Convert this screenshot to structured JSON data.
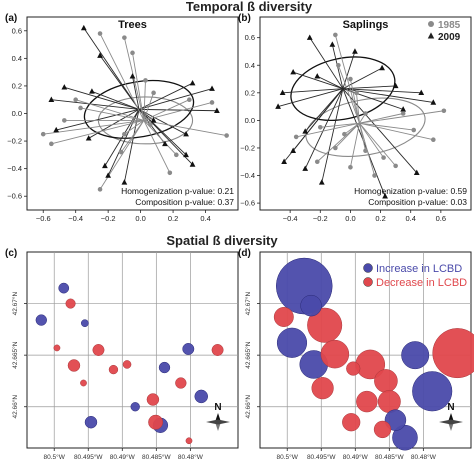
{
  "titles": {
    "temporal": "Temporal ß diversity",
    "spatial": "Spatial ß diversity"
  },
  "colors": {
    "red": "#e0474c",
    "blue": "#4a4aaa",
    "gray": "#8a8a8a",
    "dark": "#222222",
    "grid": "#9a9a9a"
  },
  "chart_data": [
    {
      "id": "a",
      "label": "(a)",
      "title": "Trees",
      "type": "scatter",
      "xlim": [
        -0.7,
        0.6
      ],
      "ylim": [
        -0.7,
        0.7
      ],
      "xticks": [
        -0.6,
        -0.4,
        -0.2,
        0.0,
        0.2,
        0.4
      ],
      "yticks": [
        -0.6,
        -0.4,
        -0.2,
        0.0,
        0.2,
        0.4,
        0.6
      ],
      "xtick_labels": [
        "−0.6",
        "−0.4",
        "−0.2",
        "0.0",
        "0.2",
        "0.4"
      ],
      "ytick_labels": [
        "−0.6",
        "−0.4",
        "−0.2",
        "0.0",
        "0.2",
        "0.4",
        "0.6"
      ],
      "centroid_2009": [
        -0.01,
        0.03
      ],
      "centroid_1985": [
        0.02,
        -0.05
      ],
      "ellipse_2009": {
        "cx": -0.01,
        "cy": 0.03,
        "rx": 0.34,
        "ry": 0.2,
        "angle": 10
      },
      "ellipse_1985": {
        "cx": 0.03,
        "cy": -0.05,
        "rx": 0.29,
        "ry": 0.17,
        "angle": 0
      },
      "series": [
        {
          "name": "2009",
          "marker": "triangle",
          "points": [
            [
              -0.35,
              0.62
            ],
            [
              -0.25,
              0.42
            ],
            [
              -0.05,
              0.27
            ],
            [
              0.32,
              0.22
            ],
            [
              0.44,
              0.18
            ],
            [
              -0.3,
              0.16
            ],
            [
              -0.47,
              0.19
            ],
            [
              -0.55,
              0.1
            ],
            [
              0.47,
              0.02
            ],
            [
              0.08,
              -0.05
            ],
            [
              0.28,
              -0.15
            ],
            [
              -0.52,
              -0.12
            ],
            [
              -0.32,
              -0.18
            ],
            [
              0.15,
              -0.22
            ],
            [
              0.28,
              -0.3
            ],
            [
              -0.22,
              -0.38
            ],
            [
              -0.2,
              -0.45
            ],
            [
              0.32,
              -0.37
            ],
            [
              -0.1,
              -0.5
            ]
          ]
        },
        {
          "name": "1985",
          "marker": "circle",
          "points": [
            [
              -0.25,
              0.58
            ],
            [
              -0.1,
              0.55
            ],
            [
              -0.05,
              0.44
            ],
            [
              0.03,
              0.24
            ],
            [
              0.08,
              0.15
            ],
            [
              0.3,
              0.1
            ],
            [
              -0.37,
              0.04
            ],
            [
              0.44,
              0.08
            ],
            [
              -0.4,
              0.1
            ],
            [
              -0.47,
              -0.05
            ],
            [
              -0.6,
              -0.15
            ],
            [
              0.06,
              -0.08
            ],
            [
              -0.1,
              -0.15
            ],
            [
              -0.12,
              -0.28
            ],
            [
              0.22,
              -0.3
            ],
            [
              0.18,
              -0.43
            ],
            [
              -0.25,
              -0.55
            ],
            [
              0.53,
              -0.16
            ],
            [
              -0.55,
              -0.22
            ]
          ]
        }
      ],
      "stats": [
        "Homogenization p-value: 0.21",
        "Composition p-value: 0.37"
      ]
    },
    {
      "id": "b",
      "label": "(b)",
      "title": "Saplings",
      "type": "scatter",
      "xlim": [
        -0.6,
        0.8
      ],
      "ylim": [
        -0.65,
        0.75
      ],
      "xticks": [
        -0.4,
        -0.2,
        0.0,
        0.2,
        0.4,
        0.6
      ],
      "yticks": [
        -0.6,
        -0.4,
        -0.2,
        0.0,
        0.2,
        0.4,
        0.6
      ],
      "xtick_labels": [
        "−0.4",
        "−0.2",
        "0.0",
        "0.2",
        "0.4",
        "0.6"
      ],
      "ytick_labels": [
        "−0.6",
        "−0.4",
        "−0.2",
        "0.0",
        "0.2",
        "0.4",
        "0.6"
      ],
      "legend": [
        {
          "name": "1985",
          "marker": "circle",
          "color": "#8a8a8a"
        },
        {
          "name": "2009",
          "marker": "triangle",
          "color": "#222222"
        }
      ],
      "centroid_2009": [
        -0.05,
        0.23
      ],
      "centroid_1985": [
        0.06,
        -0.02
      ],
      "ellipse_2009": {
        "cx": -0.05,
        "cy": 0.23,
        "rx": 0.35,
        "ry": 0.22,
        "angle": 12
      },
      "ellipse_1985": {
        "cx": 0.1,
        "cy": -0.05,
        "rx": 0.4,
        "ry": 0.2,
        "angle": 10
      },
      "series": [
        {
          "name": "2009",
          "marker": "triangle",
          "points": [
            [
              -0.27,
              0.6
            ],
            [
              -0.12,
              0.55
            ],
            [
              0.03,
              0.5
            ],
            [
              0.21,
              0.38
            ],
            [
              -0.22,
              0.32
            ],
            [
              -0.38,
              0.35
            ],
            [
              -0.45,
              0.2
            ],
            [
              0.3,
              0.25
            ],
            [
              0.47,
              0.2
            ],
            [
              0.55,
              0.13
            ],
            [
              0.35,
              0.08
            ],
            [
              -0.48,
              0.1
            ],
            [
              -0.3,
              -0.08
            ],
            [
              -0.44,
              -0.3
            ],
            [
              -0.3,
              -0.35
            ],
            [
              -0.19,
              -0.45
            ],
            [
              0.23,
              -0.55
            ],
            [
              0.44,
              -0.38
            ],
            [
              -0.38,
              -0.22
            ]
          ]
        },
        {
          "name": "1985",
          "marker": "circle",
          "points": [
            [
              -0.1,
              0.62
            ],
            [
              -0.08,
              0.4
            ],
            [
              0.0,
              0.3
            ],
            [
              0.04,
              0.2
            ],
            [
              0.1,
              0.05
            ],
            [
              0.35,
              0.05
            ],
            [
              0.42,
              -0.07
            ],
            [
              0.62,
              0.07
            ],
            [
              -0.2,
              -0.05
            ],
            [
              -0.36,
              -0.12
            ],
            [
              -0.1,
              -0.2
            ],
            [
              0.1,
              -0.22
            ],
            [
              0.22,
              -0.27
            ],
            [
              -0.22,
              -0.3
            ],
            [
              0.55,
              -0.14
            ],
            [
              0.0,
              -0.34
            ],
            [
              0.3,
              -0.33
            ],
            [
              -0.04,
              -0.1
            ],
            [
              0.16,
              -0.4
            ]
          ]
        }
      ],
      "stats": [
        "Homogenization p-value: 0.59",
        "Composition p-value: 0.03"
      ]
    },
    {
      "id": "c",
      "label": "(c)",
      "type": "scatter",
      "xlim": [
        -80.504,
        -80.473
      ],
      "ylim": [
        42.656,
        42.675
      ],
      "xticks": [
        -80.5,
        -80.495,
        -80.49,
        -80.485,
        -80.48
      ],
      "xtick_labels": [
        "80.5°W",
        "80.495°W",
        "80.49°W",
        "80.485°W",
        "80.48°W"
      ],
      "yticks": [
        42.66,
        42.665,
        42.67
      ],
      "ytick_labels": [
        "42.66°N",
        "42.665°N",
        "42.67°N"
      ],
      "north_label": "N",
      "points": [
        {
          "lon": -80.5019,
          "lat": 42.6684,
          "group": "increase",
          "size": 0.09
        },
        {
          "lon": -80.4986,
          "lat": 42.6715,
          "group": "increase",
          "size": 0.08
        },
        {
          "lon": -80.4976,
          "lat": 42.67,
          "group": "decrease",
          "size": 0.07
        },
        {
          "lon": -80.4996,
          "lat": 42.6657,
          "group": "decrease",
          "size": 0.03
        },
        {
          "lon": -80.4955,
          "lat": 42.6681,
          "group": "increase",
          "size": 0.04
        },
        {
          "lon": -80.4971,
          "lat": 42.664,
          "group": "decrease",
          "size": 0.11
        },
        {
          "lon": -80.4935,
          "lat": 42.6655,
          "group": "decrease",
          "size": 0.1
        },
        {
          "lon": -80.4957,
          "lat": 42.6623,
          "group": "decrease",
          "size": 0.03
        },
        {
          "lon": -80.4913,
          "lat": 42.6636,
          "group": "decrease",
          "size": 0.06
        },
        {
          "lon": -80.4893,
          "lat": 42.6641,
          "group": "decrease",
          "size": 0.05
        },
        {
          "lon": -80.4838,
          "lat": 42.6638,
          "group": "increase",
          "size": 0.09
        },
        {
          "lon": -80.4803,
          "lat": 42.6656,
          "group": "increase",
          "size": 0.1
        },
        {
          "lon": -80.476,
          "lat": 42.6655,
          "group": "decrease",
          "size": 0.1
        },
        {
          "lon": -80.4814,
          "lat": 42.6623,
          "group": "decrease",
          "size": 0.09
        },
        {
          "lon": -80.4784,
          "lat": 42.661,
          "group": "increase",
          "size": 0.13
        },
        {
          "lon": -80.4855,
          "lat": 42.6607,
          "group": "decrease",
          "size": 0.11
        },
        {
          "lon": -80.4881,
          "lat": 42.66,
          "group": "increase",
          "size": 0.06
        },
        {
          "lon": -80.4946,
          "lat": 42.6585,
          "group": "increase",
          "size": 0.11
        },
        {
          "lon": -80.4851,
          "lat": 42.6585,
          "group": "decrease",
          "size": 0.16
        },
        {
          "lon": -80.4844,
          "lat": 42.6582,
          "group": "increase",
          "size": 0.17
        },
        {
          "lon": -80.4802,
          "lat": 42.6567,
          "group": "decrease",
          "size": 0.03
        }
      ]
    },
    {
      "id": "d",
      "label": "(d)",
      "type": "scatter",
      "xlim": [
        -80.504,
        -80.473
      ],
      "ylim": [
        42.656,
        42.675
      ],
      "xticks": [
        -80.5,
        -80.495,
        -80.49,
        -80.485,
        -80.48
      ],
      "xtick_labels": [
        "80.5°W",
        "80.495°W",
        "80.49°W",
        "80.485°W",
        "80.48°W"
      ],
      "yticks": [
        42.66,
        42.665,
        42.67
      ],
      "ytick_labels": [
        "42.66°N",
        "42.665°N",
        "42.67°N"
      ],
      "north_label": "N",
      "legend": [
        {
          "name": "Increase in LCBD",
          "group": "increase"
        },
        {
          "name": "Decrease in LCBD",
          "group": "decrease"
        }
      ],
      "points": [
        {
          "lon": -80.4975,
          "lat": 42.6717,
          "group": "increase",
          "size": 1.0
        },
        {
          "lon": -80.4965,
          "lat": 42.6698,
          "group": "increase",
          "size": 0.14
        },
        {
          "lon": -80.5005,
          "lat": 42.6687,
          "group": "decrease",
          "size": 0.12
        },
        {
          "lon": -80.4993,
          "lat": 42.6662,
          "group": "increase",
          "size": 0.28
        },
        {
          "lon": -80.4945,
          "lat": 42.6679,
          "group": "decrease",
          "size": 0.38
        },
        {
          "lon": -80.4961,
          "lat": 42.6641,
          "group": "increase",
          "size": 0.25
        },
        {
          "lon": -80.493,
          "lat": 42.6651,
          "group": "decrease",
          "size": 0.25
        },
        {
          "lon": -80.4948,
          "lat": 42.6618,
          "group": "decrease",
          "size": 0.15
        },
        {
          "lon": -80.4903,
          "lat": 42.6637,
          "group": "decrease",
          "size": 0.06
        },
        {
          "lon": -80.4878,
          "lat": 42.6641,
          "group": "decrease",
          "size": 0.27
        },
        {
          "lon": -80.4812,
          "lat": 42.665,
          "group": "increase",
          "size": 0.24
        },
        {
          "lon": -80.475,
          "lat": 42.6652,
          "group": "decrease",
          "size": 0.78
        },
        {
          "lon": -80.4855,
          "lat": 42.6625,
          "group": "decrease",
          "size": 0.17
        },
        {
          "lon": -80.4883,
          "lat": 42.6605,
          "group": "decrease",
          "size": 0.14
        },
        {
          "lon": -80.485,
          "lat": 42.6605,
          "group": "decrease",
          "size": 0.16
        },
        {
          "lon": -80.4787,
          "lat": 42.6615,
          "group": "increase",
          "size": 0.5
        },
        {
          "lon": -80.4906,
          "lat": 42.6585,
          "group": "decrease",
          "size": 0.1
        },
        {
          "lon": -80.4841,
          "lat": 42.6587,
          "group": "increase",
          "size": 0.14
        },
        {
          "lon": -80.4827,
          "lat": 42.657,
          "group": "increase",
          "size": 0.2
        },
        {
          "lon": -80.486,
          "lat": 42.6578,
          "group": "decrease",
          "size": 0.09
        }
      ]
    }
  ]
}
